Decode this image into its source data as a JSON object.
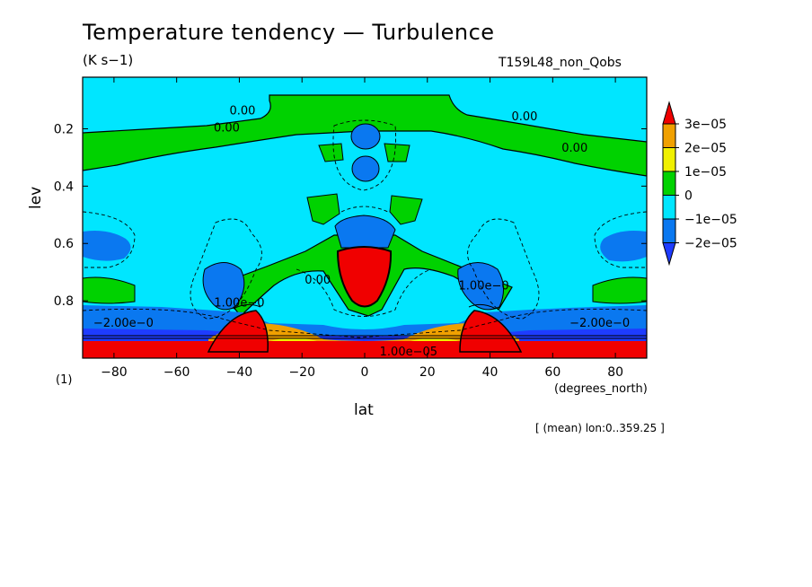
{
  "chart_data": {
    "type": "heatmap",
    "title": "Temperature tendency — Turbulence",
    "units": "(K s−1)",
    "run_label": "T159L48_non_Qobs",
    "xlabel": "lat",
    "xunits": "(degrees_north)",
    "ylabel": "lev",
    "scale_annotation": "(1)",
    "footer": "[ (mean) lon:0..359.25 ]",
    "xlim": [
      -90,
      90
    ],
    "ylim": [
      1.0,
      0.02
    ],
    "y_reversed": true,
    "x_ticks": [
      -80,
      -60,
      -40,
      -20,
      0,
      20,
      40,
      60,
      80
    ],
    "x_tick_labels": [
      "−80",
      "−60",
      "−40",
      "−20",
      "0",
      "20",
      "40",
      "60",
      "80"
    ],
    "y_ticks": [
      0.2,
      0.4,
      0.6,
      0.8
    ],
    "y_tick_labels": [
      "0.2",
      "0.4",
      "0.6",
      "0.8"
    ],
    "colorbar": {
      "levels": [
        "3e−05",
        "2e−05",
        "1e−05",
        "0",
        "−1e−05",
        "−2e−05"
      ],
      "colors": [
        "#f00000",
        "#f0a000",
        "#f0f000",
        "#00d200",
        "#00e6ff",
        "#0a78f0",
        "#1e3cff"
      ]
    },
    "contour_labels": [
      {
        "text": "0.00",
        "lat": -39,
        "lev": 0.15
      },
      {
        "text": "0.00",
        "lat": -44,
        "lev": 0.21
      },
      {
        "text": "0.00",
        "lat": 51,
        "lev": 0.17
      },
      {
        "text": "0.00",
        "lat": 67,
        "lev": 0.28
      },
      {
        "text": "0.00",
        "lat": -15,
        "lev": 0.74
      },
      {
        "text": "1.00e−0",
        "lat": -40,
        "lev": 0.82
      },
      {
        "text": "1.00e−0",
        "lat": 38,
        "lev": 0.76
      },
      {
        "text": "−2.00e−0",
        "lat": -77,
        "lev": 0.89
      },
      {
        "text": "−2.00e−0",
        "lat": 75,
        "lev": 0.89
      },
      {
        "text": "1.00e−05",
        "lat": 14,
        "lev": 0.99
      }
    ],
    "features": [
      {
        "value": "0",
        "desc": "upper positive band",
        "lev_range": [
          0.08,
          0.2
        ]
      },
      {
        "value": "-2e-05",
        "desc": "cores near equator",
        "lat": 0,
        "lev": [
          0.25,
          0.33,
          0.57
        ]
      },
      {
        "value": "3e-05",
        "desc": "equatorial maximum",
        "lat": 0,
        "lev": 0.7
      },
      {
        "value": "3e-05",
        "desc": "near-surface maxima",
        "lat": [
          -40,
          -18,
          18,
          40
        ],
        "lev": 0.95
      }
    ]
  }
}
